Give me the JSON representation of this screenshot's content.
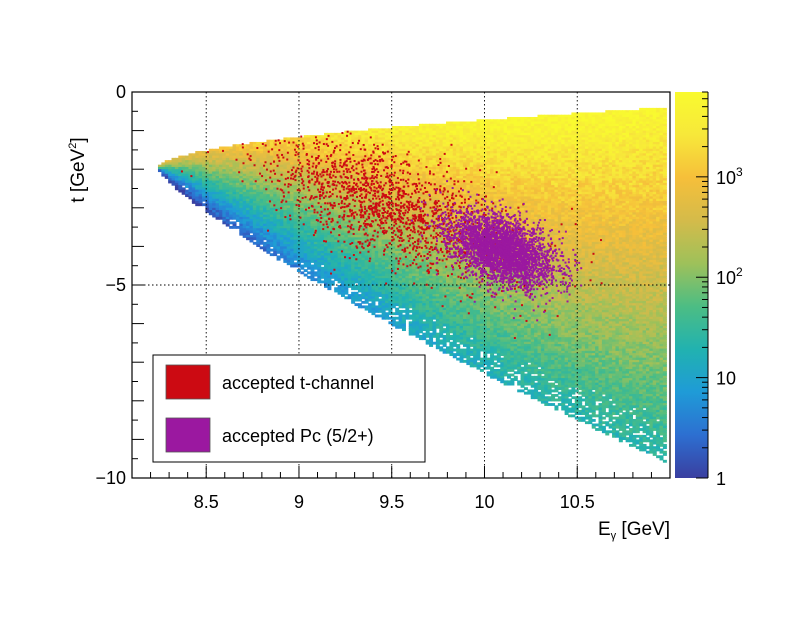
{
  "chart_data": {
    "type": "heatmap",
    "xlabel": "E",
    "xlabel_sub": "γ",
    "xlabel_unit": " [GeV]",
    "ylabel": "t [GeV",
    "ylabel_sup": "2",
    "ylabel_close": "]",
    "xlim": [
      8.1,
      11.0
    ],
    "ylim": [
      -10.0,
      0.0
    ],
    "x_ticks": [
      8.5,
      9,
      9.5,
      10,
      10.5
    ],
    "x_tick_labels": [
      "8.5",
      "9",
      "9.5",
      "10",
      "10.5"
    ],
    "y_ticks": [
      0,
      -5,
      -10
    ],
    "y_tick_labels": [
      "0",
      "−5",
      "−10"
    ],
    "grid": true,
    "colorbar": {
      "scale": "log",
      "range": [
        1,
        7000
      ],
      "labels": [
        {
          "value": 1,
          "text": "1"
        },
        {
          "value": 10,
          "text": "10"
        },
        {
          "value": 100,
          "base": "10",
          "exp": "2"
        },
        {
          "value": 1000,
          "base": "10",
          "exp": "3"
        }
      ],
      "colors": [
        "#3a3fa0",
        "#2d6fd1",
        "#1f9bd7",
        "#21b2b0",
        "#4cbd84",
        "#9ec15a",
        "#d4bb4a",
        "#f6bf3a",
        "#f7e83a",
        "#f9fa2f"
      ]
    },
    "legend": {
      "position": "bottom-left",
      "entries": [
        {
          "label": "accepted t-channel",
          "color": "#cc0a12"
        },
        {
          "label": "accepted Pc (5/2+)",
          "color": "#9b18a0"
        }
      ]
    },
    "series": [
      {
        "name": "accepted t-channel",
        "center": [
          9.5,
          -3.0
        ],
        "spread": [
          0.35,
          0.7
        ],
        "slope": -1.8
      },
      {
        "name": "accepted Pc (5/2+)",
        "center": [
          10.1,
          -4.1
        ],
        "spread": [
          0.14,
          0.42
        ],
        "slope": -1.5
      }
    ]
  }
}
